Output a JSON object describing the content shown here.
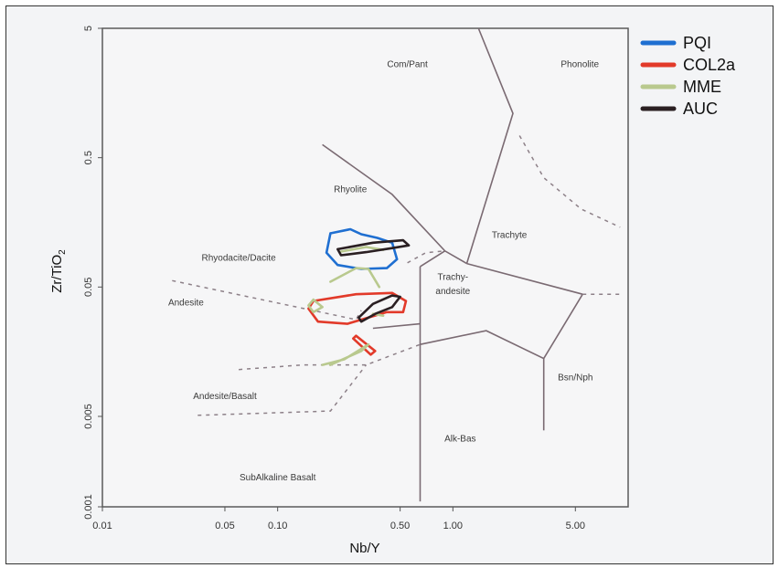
{
  "chart_data": {
    "type": "scatter",
    "title": "",
    "xlabel": "Nb/Y",
    "ylabel": "Zr/TiO",
    "ylabel_subscript": "2",
    "x_scale": "log",
    "y_scale": "log",
    "xlim": [
      0.01,
      10
    ],
    "ylim": [
      0.001,
      5
    ],
    "x_ticks": [
      {
        "value": 0.01,
        "label": "0.01"
      },
      {
        "value": 0.05,
        "label": "0.05"
      },
      {
        "value": 0.1,
        "label": "0.10"
      },
      {
        "value": 0.5,
        "label": "0.50"
      },
      {
        "value": 1,
        "label": "1.00"
      },
      {
        "value": 5,
        "label": "5.00"
      }
    ],
    "y_ticks": [
      {
        "value": 0.001,
        "label": "0.001"
      },
      {
        "value": 0.005,
        "label": "0.005"
      },
      {
        "value": 0.05,
        "label": "0.05"
      },
      {
        "value": 0.5,
        "label": "0.5"
      },
      {
        "value": 5,
        "label": "5"
      }
    ],
    "grid": false,
    "legend_position": "top-right",
    "legend": [
      {
        "name": "PQI",
        "color": "#1f6fd1"
      },
      {
        "name": "COL2a",
        "color": "#e23a2a"
      },
      {
        "name": "MME",
        "color": "#b9c98e"
      },
      {
        "name": "AUC",
        "color": "#2a1f22"
      }
    ],
    "field_labels": [
      {
        "text": "Com/Pant",
        "x": 0.55,
        "y": 2.5
      },
      {
        "text": "Phonolite",
        "x": 5.3,
        "y": 2.5
      },
      {
        "text": "Rhyolite",
        "x": 0.26,
        "y": 0.27
      },
      {
        "text": "Trachyte",
        "x": 2.1,
        "y": 0.12
      },
      {
        "text": "Rhyodacite/Dacite",
        "x": 0.06,
        "y": 0.08
      },
      {
        "text": "Trachy-",
        "x": 1.0,
        "y": 0.057
      },
      {
        "text": "andesite",
        "x": 1.0,
        "y": 0.044
      },
      {
        "text": "Andesite",
        "x": 0.03,
        "y": 0.036
      },
      {
        "text": "Bsn/Nph",
        "x": 5.0,
        "y": 0.0095
      },
      {
        "text": "Andesite/Basalt",
        "x": 0.05,
        "y": 0.0068
      },
      {
        "text": "Alk-Bas",
        "x": 1.1,
        "y": 0.0032
      },
      {
        "text": "SubAlkaline Basalt",
        "x": 0.1,
        "y": 0.0016
      }
    ],
    "solid_boundaries": [
      [
        [
          0.18,
          0.63
        ],
        [
          0.45,
          0.26
        ],
        [
          0.9,
          0.095
        ],
        [
          1.2,
          0.076
        ]
      ],
      [
        [
          1.4,
          13
        ],
        [
          2.2,
          1.1
        ],
        [
          1.2,
          0.076
        ]
      ],
      [
        [
          1.2,
          0.076
        ],
        [
          5.5,
          0.044
        ],
        [
          3.3,
          0.014
        ],
        [
          1.55,
          0.023
        ],
        [
          0.65,
          0.018
        ]
      ],
      [
        [
          0.65,
          0.072
        ],
        [
          0.9,
          0.095
        ]
      ],
      [
        [
          0.65,
          0.072
        ],
        [
          0.65,
          0.0011
        ]
      ],
      [
        [
          0.35,
          0.024
        ],
        [
          0.65,
          0.026
        ]
      ],
      [
        [
          3.3,
          0.014
        ],
        [
          3.3,
          0.0039
        ]
      ]
    ],
    "dashed_boundaries": [
      [
        [
          0.025,
          0.056
        ],
        [
          0.28,
          0.028
        ],
        [
          0.3,
          0.033
        ]
      ],
      [
        [
          0.06,
          0.0115
        ],
        [
          0.14,
          0.0125
        ],
        [
          0.32,
          0.0125
        ],
        [
          0.65,
          0.018
        ]
      ],
      [
        [
          0.035,
          0.0051
        ],
        [
          0.2,
          0.0055
        ],
        [
          0.32,
          0.0125
        ]
      ],
      [
        [
          2.4,
          0.74
        ],
        [
          3.3,
          0.35
        ],
        [
          5.4,
          0.2
        ],
        [
          9,
          0.145
        ]
      ],
      [
        [
          5.5,
          0.044
        ],
        [
          9,
          0.044
        ]
      ],
      [
        [
          0.55,
          0.077
        ],
        [
          0.7,
          0.092
        ],
        [
          0.9,
          0.095
        ]
      ]
    ],
    "series": [
      {
        "name": "PQI",
        "color": "#1f6fd1",
        "polygons": [
          [
            [
              0.2,
              0.13
            ],
            [
              0.26,
              0.14
            ],
            [
              0.3,
              0.128
            ],
            [
              0.37,
              0.12
            ],
            [
              0.45,
              0.11
            ],
            [
              0.48,
              0.082
            ],
            [
              0.42,
              0.07
            ],
            [
              0.3,
              0.069
            ],
            [
              0.22,
              0.074
            ],
            [
              0.19,
              0.092
            ],
            [
              0.2,
              0.13
            ]
          ]
        ]
      },
      {
        "name": "COL2a",
        "color": "#e23a2a",
        "polygons": [
          [
            [
              0.16,
              0.039
            ],
            [
              0.28,
              0.044
            ],
            [
              0.45,
              0.045
            ],
            [
              0.54,
              0.039
            ],
            [
              0.52,
              0.032
            ],
            [
              0.42,
              0.032
            ],
            [
              0.25,
              0.026
            ],
            [
              0.17,
              0.027
            ],
            [
              0.15,
              0.034
            ],
            [
              0.16,
              0.039
            ]
          ],
          [
            [
              0.28,
              0.021
            ],
            [
              0.36,
              0.016
            ],
            [
              0.34,
              0.015
            ],
            [
              0.27,
              0.02
            ],
            [
              0.28,
              0.021
            ]
          ]
        ]
      },
      {
        "name": "MME",
        "color": "#b9c98e",
        "polygons": [
          [
            [
              0.23,
              0.094
            ],
            [
              0.32,
              0.102
            ],
            [
              0.4,
              0.097
            ]
          ],
          [
            [
              0.2,
              0.055
            ],
            [
              0.28,
              0.07
            ],
            [
              0.33,
              0.069
            ],
            [
              0.38,
              0.05
            ]
          ],
          [
            [
              0.16,
              0.04
            ],
            [
              0.18,
              0.035
            ],
            [
              0.16,
              0.032
            ],
            [
              0.15,
              0.036
            ],
            [
              0.16,
              0.04
            ]
          ],
          [
            [
              0.18,
              0.0125
            ],
            [
              0.24,
              0.0138
            ],
            [
              0.33,
              0.018
            ],
            [
              0.3,
              0.016
            ],
            [
              0.2,
              0.0125
            ]
          ],
          [
            [
              0.35,
              0.031
            ],
            [
              0.4,
              0.03
            ]
          ]
        ]
      },
      {
        "name": "AUC",
        "color": "#2a1f22",
        "polygons": [
          [
            [
              0.22,
              0.098
            ],
            [
              0.35,
              0.11
            ],
            [
              0.52,
              0.115
            ],
            [
              0.56,
              0.105
            ],
            [
              0.45,
              0.1
            ],
            [
              0.32,
              0.093
            ],
            [
              0.23,
              0.088
            ],
            [
              0.22,
              0.098
            ]
          ],
          [
            [
              0.29,
              0.029
            ],
            [
              0.35,
              0.037
            ],
            [
              0.45,
              0.043
            ],
            [
              0.5,
              0.042
            ],
            [
              0.45,
              0.035
            ],
            [
              0.36,
              0.031
            ],
            [
              0.3,
              0.027
            ],
            [
              0.29,
              0.029
            ]
          ]
        ]
      }
    ]
  }
}
